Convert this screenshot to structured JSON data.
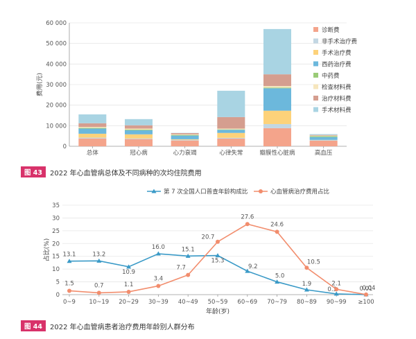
{
  "colors": {
    "bars": [
      "#f4a48b",
      "#c3d7e3",
      "#fdd27a",
      "#6cb8dc",
      "#9acb77",
      "#f6e6bd",
      "#d59e8f",
      "#a9d4e3"
    ],
    "line_blue": "#3a9ac7",
    "line_orange": "#f28d6d",
    "caption_tag": "#d8326a"
  },
  "figure43": {
    "caption_tag": "图 43",
    "caption_text": "2022 年心血管病总体及不同病种的次均住院费用"
  },
  "figure44": {
    "caption_tag": "图 44",
    "caption_text": "2022 年心血管病患者治疗费用年龄别人群分布"
  },
  "chart_data": [
    {
      "type": "bar",
      "stacked": true,
      "title": "",
      "xlabel": "",
      "ylabel": "费用(元)",
      "ylim": [
        0,
        60000
      ],
      "yticks": [
        0,
        10000,
        20000,
        30000,
        40000,
        50000,
        60000
      ],
      "ytick_labels": [
        "0",
        "10 000",
        "20 000",
        "30 000",
        "40 000",
        "50 000",
        "60 000"
      ],
      "categories": [
        "总体",
        "冠心病",
        "心力衰竭",
        "心律失常",
        "瓣膜性心脏病",
        "高血压"
      ],
      "legend_position": "right",
      "series": [
        {
          "name": "诊断费",
          "values": [
            3800,
            3500,
            2800,
            3700,
            8800,
            2700
          ]
        },
        {
          "name": "非手术治疗费",
          "values": [
            400,
            300,
            300,
            400,
            2000,
            300
          ]
        },
        {
          "name": "手术治疗费",
          "values": [
            1900,
            2000,
            300,
            2400,
            6500,
            100
          ]
        },
        {
          "name": "西药治疗费",
          "values": [
            2500,
            2000,
            1800,
            1500,
            10900,
            1400
          ]
        },
        {
          "name": "中药费",
          "values": [
            300,
            300,
            300,
            200,
            300,
            400
          ]
        },
        {
          "name": "检查材料费",
          "values": [
            500,
            500,
            300,
            400,
            800,
            300
          ]
        },
        {
          "name": "治疗材料费",
          "values": [
            1800,
            1600,
            600,
            5600,
            5700,
            300
          ]
        },
        {
          "name": "手术材料费",
          "values": [
            4300,
            3000,
            100,
            12800,
            22000,
            400
          ]
        }
      ]
    },
    {
      "type": "line",
      "title": "",
      "xlabel": "年龄(岁)",
      "ylabel": "占比(%)",
      "ylim": [
        0,
        35
      ],
      "yticks": [
        0,
        5,
        10,
        15,
        20,
        25,
        30,
        35
      ],
      "categories": [
        "0~9",
        "10~19",
        "20~29",
        "30~39",
        "40~49",
        "50~59",
        "60~69",
        "70~79",
        "80~89",
        "90~99",
        "≥100"
      ],
      "legend_position": "top",
      "series": [
        {
          "name": "第 7 次全国人口普查年龄构成比",
          "marker": "triangle",
          "values": [
            13.1,
            13.2,
            10.9,
            16.0,
            15.1,
            15.3,
            9.2,
            5.0,
            1.9,
            0.3,
            0.01
          ],
          "labels": [
            "13.1",
            "13.2",
            "10.9",
            "16.0",
            "15.1",
            "15.3",
            "9.2",
            "5.0",
            "1.9",
            "0.3",
            "0.01"
          ]
        },
        {
          "name": "心血管病治疗费用占比",
          "marker": "circle",
          "values": [
            1.5,
            0.7,
            1.1,
            3.4,
            7.7,
            20.7,
            27.6,
            24.6,
            10.5,
            2.1,
            0.04
          ],
          "labels": [
            "1.5",
            "0.7",
            "1.1",
            "3.4",
            "7.7",
            "20.7",
            "27.6",
            "24.6",
            "10.5",
            "2.1",
            "0.04"
          ]
        }
      ]
    }
  ]
}
